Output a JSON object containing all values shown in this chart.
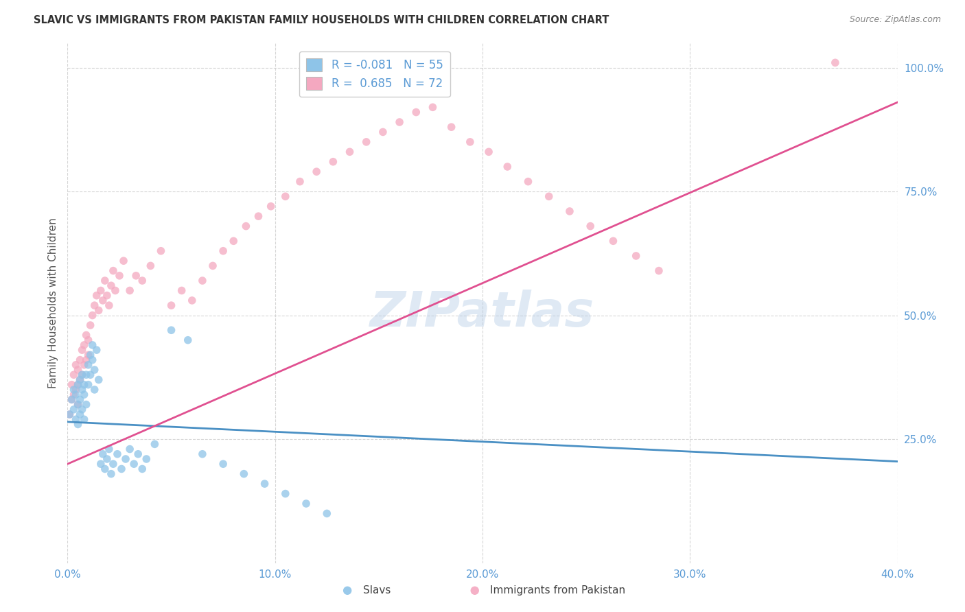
{
  "title": "SLAVIC VS IMMIGRANTS FROM PAKISTAN FAMILY HOUSEHOLDS WITH CHILDREN CORRELATION CHART",
  "source": "Source: ZipAtlas.com",
  "ylabel": "Family Households with Children",
  "xlabel_slavs": "Slavs",
  "xlabel_pakistan": "Immigrants from Pakistan",
  "watermark": "ZIPatlas",
  "xlim": [
    0.0,
    0.4
  ],
  "ylim": [
    0.0,
    1.05
  ],
  "xtick_vals": [
    0.0,
    0.1,
    0.2,
    0.3,
    0.4
  ],
  "xtick_labels": [
    "0.0%",
    "10.0%",
    "20.0%",
    "30.0%",
    "40.0%"
  ],
  "yticks_right": [
    0.25,
    0.5,
    0.75,
    1.0
  ],
  "ytick_right_labels": [
    "25.0%",
    "50.0%",
    "75.0%",
    "100.0%"
  ],
  "legend_slavs_R": "-0.081",
  "legend_slavs_N": "55",
  "legend_pakistan_R": "0.685",
  "legend_pakistan_N": "72",
  "color_slavs": "#8ec4e8",
  "color_pakistan": "#f4a8c0",
  "color_line_slavs": "#4a90c4",
  "color_line_pakistan": "#e05090",
  "slavs_line_x0": 0.0,
  "slavs_line_y0": 0.285,
  "slavs_line_x1": 0.4,
  "slavs_line_y1": 0.205,
  "pakistan_line_x0": 0.0,
  "pakistan_line_y0": 0.2,
  "pakistan_line_x1": 0.4,
  "pakistan_line_y1": 0.93,
  "slavs_x": [
    0.001,
    0.002,
    0.003,
    0.003,
    0.004,
    0.004,
    0.005,
    0.005,
    0.005,
    0.006,
    0.006,
    0.006,
    0.007,
    0.007,
    0.007,
    0.008,
    0.008,
    0.008,
    0.009,
    0.009,
    0.01,
    0.01,
    0.011,
    0.011,
    0.012,
    0.012,
    0.013,
    0.013,
    0.014,
    0.015,
    0.016,
    0.017,
    0.018,
    0.019,
    0.02,
    0.021,
    0.022,
    0.024,
    0.026,
    0.028,
    0.03,
    0.032,
    0.034,
    0.036,
    0.038,
    0.042,
    0.05,
    0.058,
    0.065,
    0.075,
    0.085,
    0.095,
    0.105,
    0.115,
    0.125
  ],
  "slavs_y": [
    0.3,
    0.33,
    0.31,
    0.35,
    0.29,
    0.34,
    0.32,
    0.36,
    0.28,
    0.33,
    0.37,
    0.3,
    0.35,
    0.31,
    0.38,
    0.34,
    0.29,
    0.36,
    0.32,
    0.38,
    0.4,
    0.36,
    0.42,
    0.38,
    0.44,
    0.41,
    0.39,
    0.35,
    0.43,
    0.37,
    0.2,
    0.22,
    0.19,
    0.21,
    0.23,
    0.18,
    0.2,
    0.22,
    0.19,
    0.21,
    0.23,
    0.2,
    0.22,
    0.19,
    0.21,
    0.24,
    0.47,
    0.45,
    0.22,
    0.2,
    0.18,
    0.16,
    0.14,
    0.12,
    0.1
  ],
  "pakistan_x": [
    0.001,
    0.002,
    0.002,
    0.003,
    0.003,
    0.004,
    0.004,
    0.005,
    0.005,
    0.005,
    0.006,
    0.006,
    0.007,
    0.007,
    0.008,
    0.008,
    0.009,
    0.009,
    0.01,
    0.01,
    0.011,
    0.012,
    0.013,
    0.014,
    0.015,
    0.016,
    0.017,
    0.018,
    0.019,
    0.02,
    0.021,
    0.022,
    0.023,
    0.025,
    0.027,
    0.03,
    0.033,
    0.036,
    0.04,
    0.045,
    0.05,
    0.055,
    0.06,
    0.065,
    0.07,
    0.075,
    0.08,
    0.086,
    0.092,
    0.098,
    0.105,
    0.112,
    0.12,
    0.128,
    0.136,
    0.144,
    0.152,
    0.16,
    0.168,
    0.176,
    0.185,
    0.194,
    0.203,
    0.212,
    0.222,
    0.232,
    0.242,
    0.252,
    0.263,
    0.274,
    0.285,
    0.37
  ],
  "pakistan_y": [
    0.3,
    0.33,
    0.36,
    0.34,
    0.38,
    0.35,
    0.4,
    0.36,
    0.32,
    0.39,
    0.37,
    0.41,
    0.38,
    0.43,
    0.4,
    0.44,
    0.41,
    0.46,
    0.42,
    0.45,
    0.48,
    0.5,
    0.52,
    0.54,
    0.51,
    0.55,
    0.53,
    0.57,
    0.54,
    0.52,
    0.56,
    0.59,
    0.55,
    0.58,
    0.61,
    0.55,
    0.58,
    0.57,
    0.6,
    0.63,
    0.52,
    0.55,
    0.53,
    0.57,
    0.6,
    0.63,
    0.65,
    0.68,
    0.7,
    0.72,
    0.74,
    0.77,
    0.79,
    0.81,
    0.83,
    0.85,
    0.87,
    0.89,
    0.91,
    0.92,
    0.88,
    0.85,
    0.83,
    0.8,
    0.77,
    0.74,
    0.71,
    0.68,
    0.65,
    0.62,
    0.59,
    1.01
  ],
  "background_color": "#ffffff",
  "grid_color": "#cccccc",
  "title_color": "#333333",
  "axis_color": "#5b9bd5",
  "marker_size": 70
}
